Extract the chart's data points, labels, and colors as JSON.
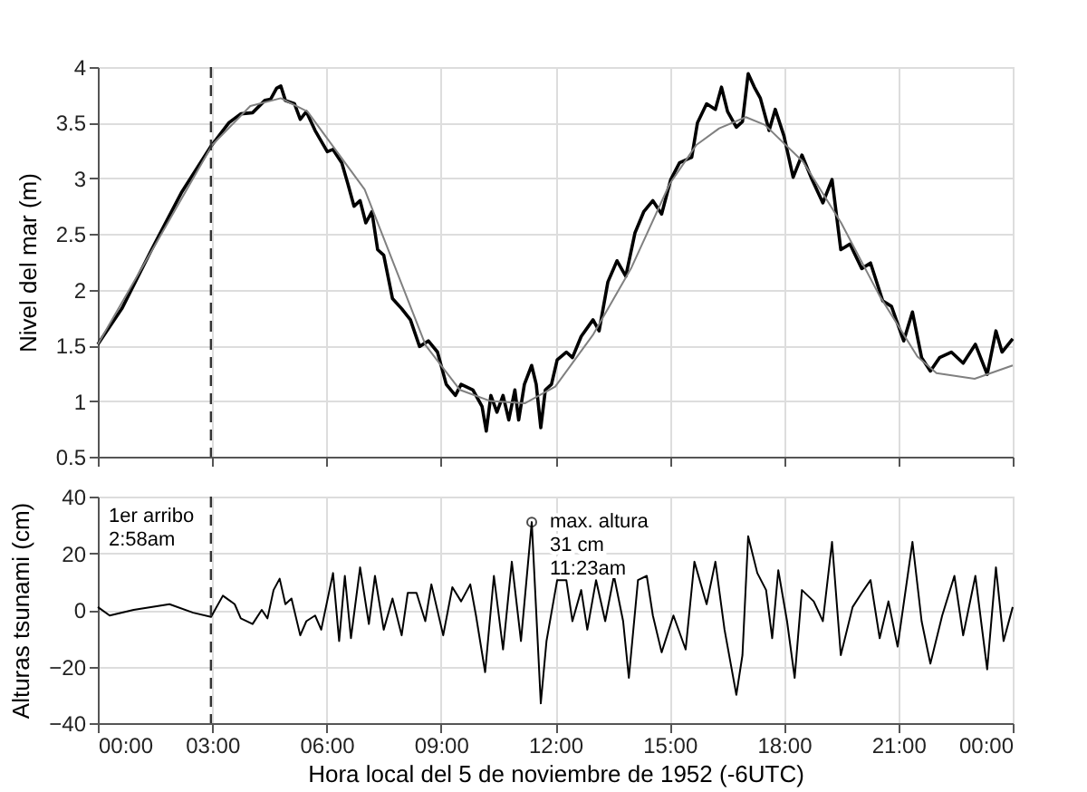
{
  "chart_data": [
    {
      "type": "line",
      "ylabel": "Nivel del mar (m)",
      "xlim": [
        0,
        24
      ],
      "xticks": [
        0,
        3,
        6,
        9,
        12,
        15,
        18,
        21,
        24
      ],
      "ylim": [
        0.5,
        4
      ],
      "yticks": [
        0.5,
        1,
        1.5,
        2,
        2.5,
        3,
        3.5,
        4
      ],
      "grid": true,
      "tick_labels": "y",
      "series": [
        {
          "color": "#000000",
          "x": [
            0,
            0.63,
            1.41,
            2.19,
            2.97,
            3.44,
            3.75,
            4.06,
            4.38,
            4.53,
            4.69,
            4.8,
            4.92,
            5.16,
            5.31,
            5.47,
            5.7,
            6.02,
            6.17,
            6.4,
            6.56,
            6.72,
            6.88,
            7.03,
            7.19,
            7.34,
            7.5,
            7.73,
            7.97,
            8.2,
            8.44,
            8.67,
            8.91,
            9.14,
            9.38,
            9.53,
            9.84,
            10.08,
            10.19,
            10.31,
            10.47,
            10.63,
            10.78,
            10.94,
            11.04,
            11.19,
            11.38,
            11.5,
            11.62,
            11.74,
            11.9,
            12.05,
            12.29,
            12.45,
            12.68,
            12.99,
            13.15,
            13.38,
            13.62,
            13.85,
            14.09,
            14.32,
            14.56,
            14.79,
            15.03,
            15.26,
            15.58,
            15.73,
            15.97,
            16.2,
            16.36,
            16.52,
            16.75,
            16.91,
            17.06,
            17.22,
            17.38,
            17.61,
            17.77,
            18.0,
            18.24,
            18.47,
            18.71,
            19.02,
            19.26,
            19.49,
            19.73,
            20.04,
            20.27,
            20.59,
            20.82,
            21.14,
            21.37,
            21.61,
            21.84,
            22.08,
            22.39,
            22.7,
            23.02,
            23.33,
            23.56,
            23.72,
            24.0
          ],
          "values": [
            1.51,
            1.83,
            2.36,
            2.87,
            3.29,
            3.5,
            3.58,
            3.59,
            3.7,
            3.71,
            3.81,
            3.83,
            3.7,
            3.67,
            3.53,
            3.6,
            3.43,
            3.24,
            3.26,
            3.14,
            2.95,
            2.75,
            2.8,
            2.6,
            2.7,
            2.36,
            2.31,
            1.92,
            1.83,
            1.73,
            1.49,
            1.54,
            1.44,
            1.15,
            1.05,
            1.15,
            1.1,
            0.95,
            0.73,
            1.05,
            0.9,
            1.05,
            0.83,
            1.1,
            0.83,
            1.15,
            1.32,
            1.15,
            0.76,
            1.1,
            1.15,
            1.37,
            1.44,
            1.39,
            1.58,
            1.73,
            1.63,
            2.07,
            2.26,
            2.12,
            2.51,
            2.7,
            2.8,
            2.68,
            2.99,
            3.14,
            3.19,
            3.5,
            3.67,
            3.62,
            3.82,
            3.6,
            3.46,
            3.51,
            3.94,
            3.82,
            3.72,
            3.43,
            3.62,
            3.38,
            3.01,
            3.21,
            3.01,
            2.78,
            2.99,
            2.36,
            2.41,
            2.19,
            2.24,
            1.9,
            1.85,
            1.54,
            1.8,
            1.39,
            1.27,
            1.39,
            1.44,
            1.34,
            1.51,
            1.24,
            1.63,
            1.44,
            1.56
          ]
        },
        {
          "color": "#808080",
          "x": [
            0,
            1.5,
            3,
            4,
            4.8,
            5.5,
            7,
            8.6,
            9.5,
            10.3,
            11.2,
            12,
            13,
            14,
            15,
            15.7,
            16.3,
            17,
            17.5,
            18.5,
            19.5,
            20.5,
            21.5,
            22,
            23,
            24
          ],
          "values": [
            1.51,
            2.4,
            3.3,
            3.65,
            3.72,
            3.6,
            2.9,
            1.5,
            1.1,
            1.0,
            0.98,
            1.13,
            1.6,
            2.2,
            2.95,
            3.3,
            3.45,
            3.55,
            3.48,
            3.15,
            2.6,
            1.95,
            1.4,
            1.25,
            1.2,
            1.32
          ]
        }
      ],
      "ref_lines": [
        {
          "axis": "x",
          "value": 2.9667,
          "line_style": "dashed"
        }
      ]
    },
    {
      "type": "line",
      "ylabel": "Alturas tsunami (cm)",
      "xlabel": "Hora local del 5 de noviembre de 1952 (-6UTC)",
      "xlim": [
        0,
        24
      ],
      "xticks": [
        {
          "value": 0,
          "label": "00:00"
        },
        {
          "value": 3,
          "label": "03:00"
        },
        {
          "value": 6,
          "label": "06:00"
        },
        {
          "value": 9,
          "label": "09:00"
        },
        {
          "value": 12,
          "label": "12:00"
        },
        {
          "value": 15,
          "label": "15:00"
        },
        {
          "value": 18,
          "label": "18:00"
        },
        {
          "value": 21,
          "label": "21:00"
        },
        {
          "value": 24,
          "label": "00:00"
        }
      ],
      "ylim": [
        -40,
        40
      ],
      "yticks": [
        -40,
        -20,
        0,
        20,
        40
      ],
      "grid": true,
      "series": [
        {
          "color": "#000000",
          "x": [
            0,
            0.31,
            0.94,
            1.88,
            2.5,
            2.97,
            3.28,
            3.59,
            3.75,
            4.06,
            4.3,
            4.45,
            4.61,
            4.77,
            4.92,
            5.08,
            5.31,
            5.47,
            5.7,
            5.86,
            6.17,
            6.33,
            6.48,
            6.64,
            6.88,
            7.11,
            7.27,
            7.5,
            7.73,
            7.97,
            8.13,
            8.36,
            8.59,
            8.75,
            9.06,
            9.3,
            9.53,
            9.77,
            9.92,
            10.16,
            10.39,
            10.63,
            10.86,
            11.1,
            11.383,
            11.62,
            11.77,
            12.05,
            12.29,
            12.45,
            12.68,
            12.84,
            13.07,
            13.31,
            13.54,
            13.78,
            13.93,
            14.17,
            14.4,
            14.56,
            14.79,
            15.1,
            15.42,
            15.65,
            15.97,
            16.2,
            16.44,
            16.75,
            16.91,
            17.06,
            17.3,
            17.53,
            17.69,
            17.85,
            18.08,
            18.28,
            18.47,
            18.78,
            19.02,
            19.26,
            19.49,
            19.8,
            20.04,
            20.27,
            20.51,
            20.74,
            20.98,
            21.37,
            21.61,
            21.84,
            22.15,
            22.47,
            22.7,
            23.02,
            23.33,
            23.56,
            23.76,
            24.0
          ],
          "values": [
            1,
            -2,
            0,
            2,
            -1,
            -2.5,
            5,
            2,
            -3,
            -5,
            0,
            -3,
            7,
            11,
            2,
            4,
            -9,
            -4,
            -2,
            -7,
            13,
            -11,
            12,
            -10,
            15,
            -5,
            12,
            -7,
            4,
            -9,
            6,
            6,
            -4,
            9,
            -9,
            8,
            3,
            9,
            -2,
            -22,
            12,
            -14,
            17,
            -11,
            31,
            -33,
            -11,
            10.5,
            10.5,
            -4,
            7,
            -7,
            10.5,
            -4,
            12,
            -4,
            -24,
            10.5,
            12,
            -2,
            -15,
            -2,
            -14,
            17,
            2,
            17,
            -7,
            -30,
            -16,
            26,
            13,
            7,
            -10,
            14,
            -4,
            -24,
            7,
            3,
            -4,
            24,
            -16,
            1,
            6,
            10.5,
            -10,
            3,
            -13,
            24,
            -4,
            -19,
            -2,
            12,
            -9,
            12,
            -21,
            15,
            -11,
            1
          ]
        },
        {
          "type": "scatter",
          "marker": "circle",
          "color": "#000000",
          "x": [
            11.383
          ],
          "values": [
            31
          ]
        }
      ],
      "ref_lines": [
        {
          "axis": "x",
          "value": 2.9667,
          "line_style": "dashed"
        }
      ],
      "annotations": [
        "1er arribo\n2:58am",
        {
          "text": "max. altura\n31 cm\n11:23am",
          "x": 11.383,
          "y": 31
        }
      ]
    }
  ]
}
